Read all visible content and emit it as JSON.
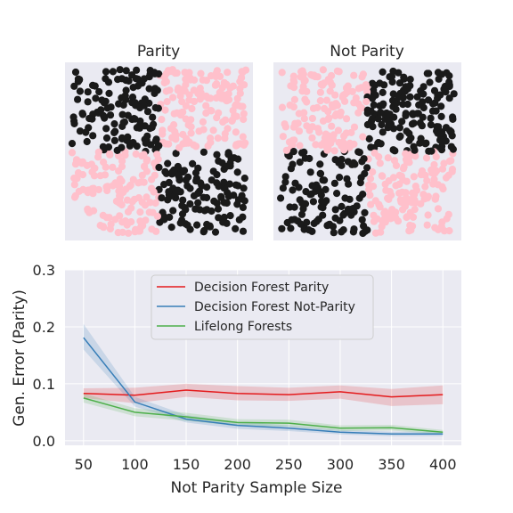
{
  "chart_data": [
    {
      "type": "scatter",
      "title": "Parity",
      "layout": "2x2 checkerboard",
      "quadrant_classes": {
        "top_left": "black",
        "top_right": "pink",
        "bottom_left": "pink",
        "bottom_right": "black"
      },
      "class_colors": {
        "black": "#1a1a1a",
        "pink": "#ffc0cb"
      },
      "background": "#eaeaf2"
    },
    {
      "type": "scatter",
      "title": "Not Parity",
      "layout": "2x2 checkerboard",
      "quadrant_classes": {
        "top_left": "pink",
        "top_right": "black",
        "bottom_left": "black",
        "bottom_right": "pink"
      },
      "class_colors": {
        "black": "#1a1a1a",
        "pink": "#ffc0cb"
      },
      "background": "#eaeaf2"
    },
    {
      "type": "line",
      "xlabel": "Not Parity Sample Size",
      "ylabel": "Gen. Error (Parity)",
      "x": [
        50,
        100,
        150,
        200,
        250,
        300,
        350,
        400
      ],
      "xticks": [
        50,
        100,
        150,
        200,
        250,
        300,
        350,
        400
      ],
      "xlim": [
        32,
        418
      ],
      "yticks": [
        "0.0",
        "0.1",
        "0.2",
        "0.3"
      ],
      "ylim": [
        -0.008,
        0.3
      ],
      "grid": true,
      "legend_position": "top-center",
      "series": [
        {
          "name": "Decision Forest Parity",
          "color": "#e41a1c",
          "values": [
            0.083,
            0.08,
            0.089,
            0.083,
            0.081,
            0.086,
            0.077,
            0.081
          ],
          "band_low": [
            0.075,
            0.066,
            0.077,
            0.071,
            0.07,
            0.074,
            0.061,
            0.064
          ],
          "band_high": [
            0.092,
            0.093,
            0.1,
            0.096,
            0.093,
            0.097,
            0.091,
            0.097
          ]
        },
        {
          "name": "Decision Forest Not-Parity",
          "color": "#377eb8",
          "values": [
            0.181,
            0.068,
            0.038,
            0.027,
            0.022,
            0.015,
            0.012,
            0.012
          ],
          "band_low": [
            0.16,
            0.06,
            0.032,
            0.021,
            0.017,
            0.011,
            0.008,
            0.008
          ],
          "band_high": [
            0.205,
            0.077,
            0.045,
            0.033,
            0.027,
            0.019,
            0.016,
            0.016
          ]
        },
        {
          "name": "Lifelong Forests",
          "color": "#4daf4a",
          "values": [
            0.075,
            0.05,
            0.042,
            0.032,
            0.031,
            0.022,
            0.023,
            0.015
          ],
          "band_low": [
            0.067,
            0.043,
            0.035,
            0.026,
            0.025,
            0.017,
            0.018,
            0.011
          ],
          "band_high": [
            0.083,
            0.057,
            0.049,
            0.038,
            0.037,
            0.027,
            0.028,
            0.019
          ]
        }
      ]
    }
  ]
}
